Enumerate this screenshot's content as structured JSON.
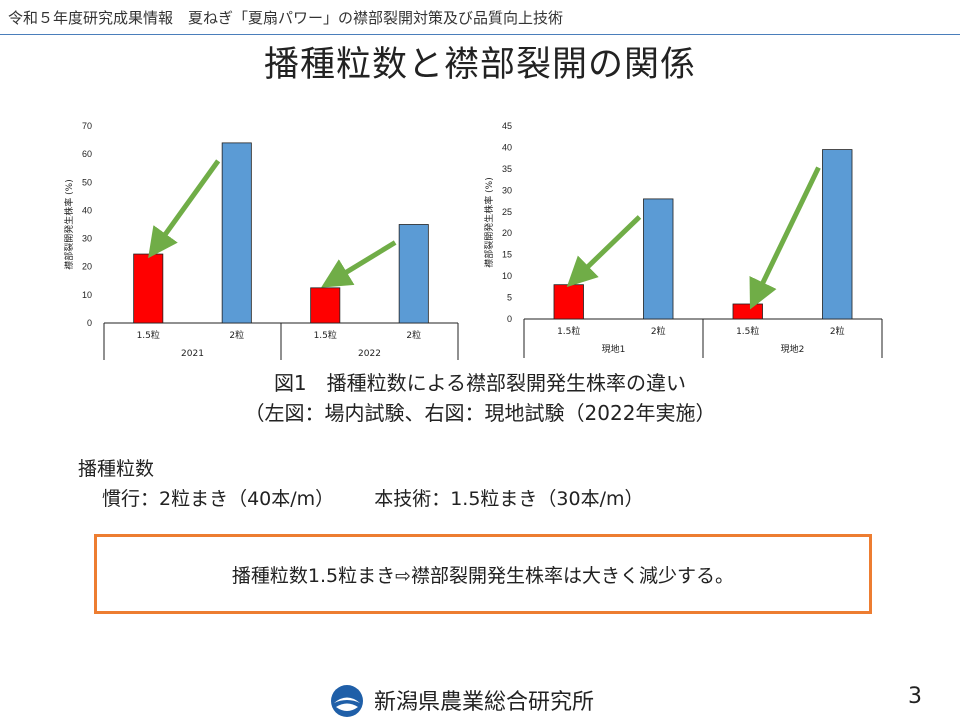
{
  "header": {
    "text": "令和５年度研究成果情報　夏ねぎ「夏扇パワー」の襟部裂開対策及び品質向上技術"
  },
  "title": "播種粒数と襟部裂開の関係",
  "chart_data": [
    {
      "type": "bar",
      "ylabel": "襟部裂開発生株率 (%)",
      "ylim": [
        0,
        70
      ],
      "yticks": [
        0,
        10,
        20,
        30,
        40,
        50,
        60,
        70
      ],
      "groups": [
        {
          "label": "2021",
          "categories": [
            "1.5粒",
            "2粒"
          ],
          "values": [
            24.5,
            64
          ]
        },
        {
          "label": "2022",
          "categories": [
            "1.5粒",
            "2粒"
          ],
          "values": [
            12.5,
            35
          ]
        }
      ],
      "colors": [
        "#ff0000",
        "#5b9bd5"
      ],
      "arrow_color": "#70ad47",
      "grid": false
    },
    {
      "type": "bar",
      "ylabel": "襟部裂開発生株率 (%)",
      "ylim": [
        0,
        45
      ],
      "yticks": [
        0,
        5,
        10,
        15,
        20,
        25,
        30,
        35,
        40,
        45
      ],
      "groups": [
        {
          "label": "現地1",
          "categories": [
            "1.5粒",
            "2粒"
          ],
          "values": [
            8,
            28
          ]
        },
        {
          "label": "現地2",
          "categories": [
            "1.5粒",
            "2粒"
          ],
          "values": [
            3.5,
            39.5
          ]
        }
      ],
      "colors": [
        "#ff0000",
        "#5b9bd5"
      ],
      "arrow_color": "#70ad47",
      "grid": false
    }
  ],
  "figure": {
    "caption_line1": "図1　播種粒数による襟部裂開発生株率の違い",
    "caption_line2": "（左図：場内試験、右図：現地試験（2022年実施）"
  },
  "sowing": {
    "heading": "播種粒数",
    "conventional": "慣行：2粒まき（40本/m）",
    "new_technique": "本技術：1.5粒まき（30本/m）"
  },
  "conclusion": "播種粒数1.5粒まき⇨襟部裂開発生株率は大きく減少する。",
  "footer": {
    "organization": "新潟県農業総合研究所",
    "page_number": "3",
    "logo_icon": "prefecture-emblem-icon"
  }
}
